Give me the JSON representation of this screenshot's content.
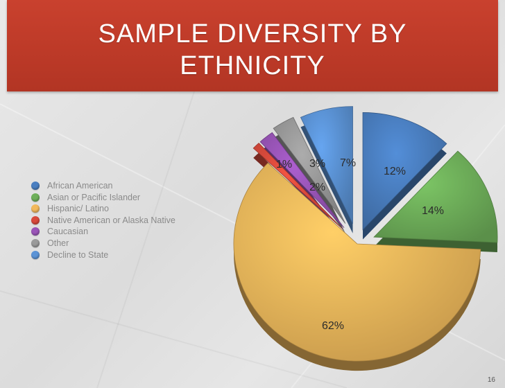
{
  "slide": {
    "title_line1": "SAMPLE DIVERSITY BY",
    "title_line2": "ETHNICITY",
    "page_number": "16",
    "banner_color": "#bd3a28"
  },
  "chart_data": {
    "type": "pie",
    "title": "SAMPLE DIVERSITY BY ETHNICITY",
    "style": "3d-exploded",
    "legend_position": "left",
    "unit": "%",
    "slices": [
      {
        "label": "African American",
        "value": 12,
        "display": "12%",
        "color": "#4a7fc1"
      },
      {
        "label": "Asian or Pacific Islander",
        "value": 14,
        "display": "14%",
        "color": "#6fb05a"
      },
      {
        "label": "Hispanic/ Latino",
        "value": 62,
        "display": "62%",
        "color": "#f2b95c"
      },
      {
        "label": "Native American or Alaska Native",
        "value": 1,
        "display": "1%",
        "color": "#d94a3c"
      },
      {
        "label": "Caucasian",
        "value": 2,
        "display": "2%",
        "color": "#9a55b8"
      },
      {
        "label": "Other",
        "value": 3,
        "display": "3%",
        "color": "#9a9a9a"
      },
      {
        "label": "Decline to State",
        "value": 7,
        "display": "7%",
        "color": "#5b93d6"
      }
    ]
  }
}
